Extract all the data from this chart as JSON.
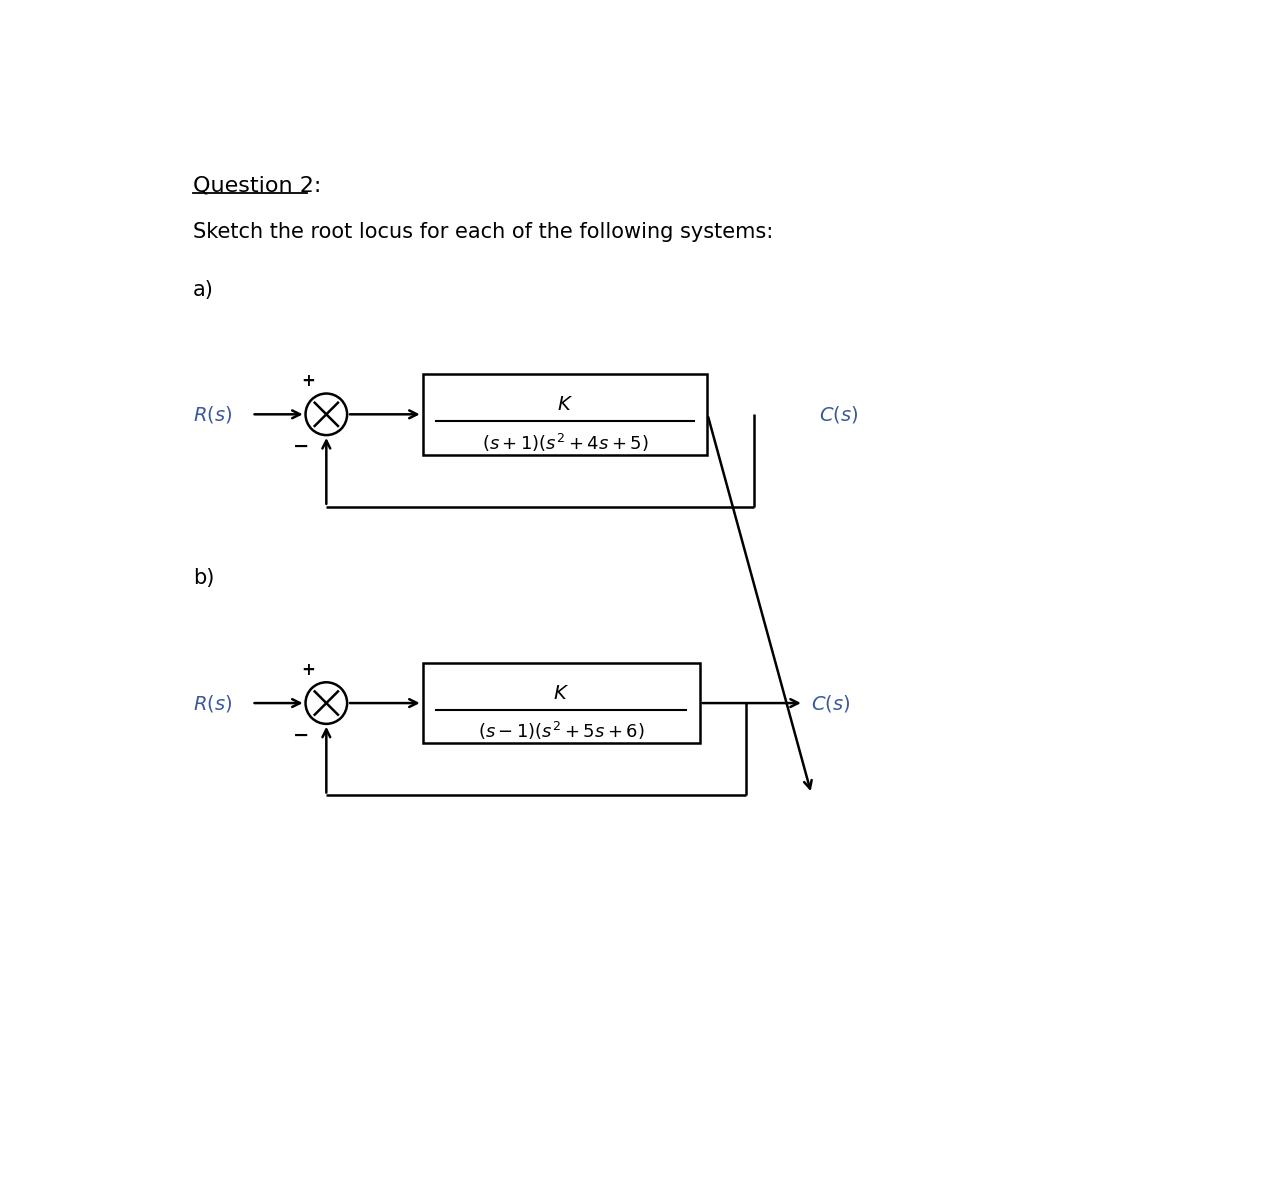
{
  "title": "Question 2:",
  "subtitle": "Sketch the root locus for each of the following systems:",
  "bg_color": "#ffffff",
  "text_color": "#000000",
  "label_a": "a)",
  "label_b": "b)",
  "system_a": {
    "R_label": "$R(s)$",
    "C_label": "$C(s)$",
    "tf_num": "$K$",
    "tf_den": "$(s + 1)(s^2 + 4s + 5)$",
    "plus_sign": "+",
    "minus_sign": "−"
  },
  "system_b": {
    "R_label": "$R(s)$",
    "C_label": "$C(s)$",
    "tf_num": "$K$",
    "tf_den": "$(s - 1)(s^2 + 5s + 6)$",
    "plus_sign": "+",
    "minus_sign": "−"
  },
  "lw": 1.8,
  "circle_r": 22,
  "fig_w": 1261,
  "fig_h": 1194
}
